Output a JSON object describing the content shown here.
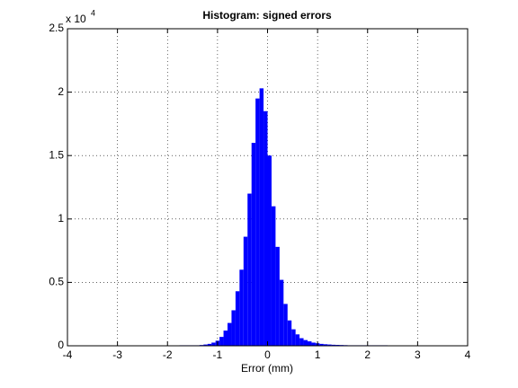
{
  "chart_data": {
    "type": "histogram",
    "title": "Histogram: signed errors",
    "x_label": "Error (mm)",
    "y_multiplier": "x 10",
    "y_multiplier_exponent": "4",
    "color": "#0000ff",
    "bins": [
      -4,
      -3.92,
      -3.84,
      -3.76,
      -3.68,
      -3.6,
      -3.52,
      -3.44,
      -3.36,
      -3.28,
      -3.2,
      -3.12,
      -3.04,
      -2.96,
      -2.88,
      -2.8,
      -2.72,
      -2.64,
      -2.56,
      -2.48,
      -2.4,
      -2.32,
      -2.24,
      -2.16,
      -2.08,
      -2,
      -1.92,
      -1.84,
      -1.76,
      -1.68,
      -1.6,
      -1.52,
      -1.44,
      -1.36,
      -1.28,
      -1.2,
      -1.12,
      -1.04,
      -0.96,
      -0.88,
      -0.8,
      -0.72,
      -0.64,
      -0.56,
      -0.48,
      -0.4,
      -0.32,
      -0.24,
      -0.16,
      -0.08,
      0,
      0.08,
      0.16,
      0.24,
      0.32,
      0.4,
      0.48,
      0.56,
      0.64,
      0.72,
      0.8,
      0.88,
      0.96,
      1.04,
      1.12,
      1.2,
      1.28,
      1.36,
      1.44,
      1.52,
      1.6,
      1.68,
      1.76,
      1.84,
      1.92,
      2,
      2.08,
      2.16,
      2.24,
      2.32,
      2.4,
      2.48,
      2.56,
      2.64,
      2.72,
      2.8,
      2.88,
      2.96,
      3.04,
      3.12,
      3.2,
      3.28,
      3.36,
      3.44,
      3.52,
      3.6,
      3.68,
      3.76,
      3.84,
      3.92,
      4
    ],
    "values": [
      0,
      0,
      0,
      0,
      0,
      0,
      0,
      0,
      0,
      0,
      0,
      0,
      0,
      0,
      0,
      0,
      0,
      0,
      0,
      0,
      0,
      0,
      0,
      0.002,
      0.002,
      0.002,
      0.002,
      0.002,
      0.004,
      0.004,
      0.004,
      0.004,
      0.004,
      0.006,
      0.01,
      0.015,
      0.025,
      0.04,
      0.07,
      0.12,
      0.18,
      0.28,
      0.43,
      0.6,
      0.86,
      1.2,
      1.6,
      1.95,
      2.03,
      1.85,
      1.5,
      1.1,
      0.78,
      0.52,
      0.33,
      0.2,
      0.13,
      0.09,
      0.06,
      0.045,
      0.035,
      0.025,
      0.02,
      0.015,
      0.012,
      0.01,
      0.008,
      0.007,
      0.006,
      0.005,
      0.004,
      0.004,
      0.004,
      0.004,
      0.004,
      0.004,
      0.004,
      0.004,
      0.004,
      0.004,
      0.002,
      0.002,
      0.002,
      0.002,
      0.002,
      0.002,
      0.002,
      0.002,
      0.002,
      0.002,
      0.002,
      0.002,
      0.002,
      0.002,
      0.002,
      0.002,
      0.002,
      0.002,
      0.002,
      0.002
    ],
    "xlim": [
      -4,
      4
    ],
    "xticks": [
      -4,
      -3,
      -2,
      -1,
      0,
      1,
      2,
      3,
      4
    ],
    "ylim": [
      0,
      2.5
    ],
    "yticks": [
      0,
      0.5,
      1,
      1.5,
      2,
      2.5
    ],
    "grid": true
  }
}
